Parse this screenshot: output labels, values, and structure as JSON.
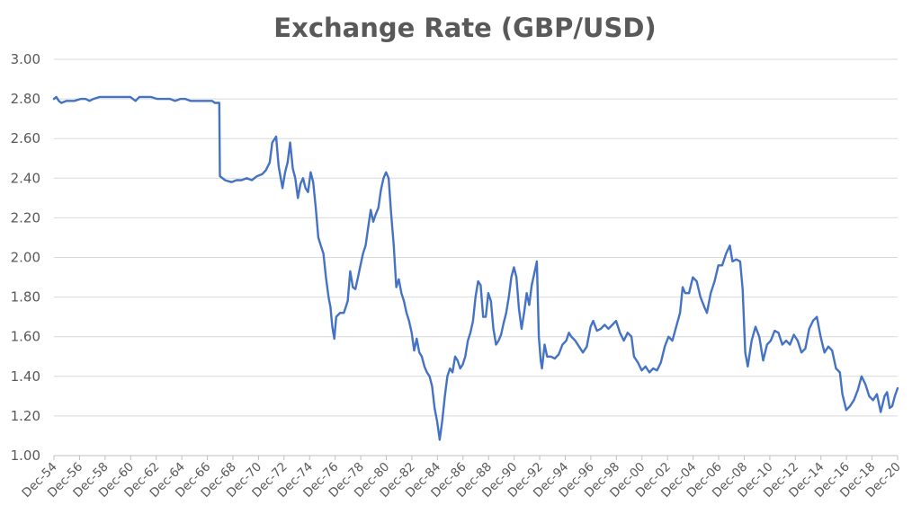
{
  "chart_data": {
    "type": "line",
    "title": "Exchange Rate (GBP/USD)",
    "xlabel": "",
    "ylabel": "",
    "ylim": [
      1.0,
      3.0
    ],
    "yticks": [
      "1.00",
      "1.20",
      "1.40",
      "1.60",
      "1.80",
      "2.00",
      "2.20",
      "2.40",
      "2.60",
      "2.80",
      "3.00"
    ],
    "xlim": [
      1954.92,
      2020.92
    ],
    "xticks": [
      "Dec-54",
      "Dec-56",
      "Dec-58",
      "Dec-60",
      "Dec-62",
      "Dec-64",
      "Dec-66",
      "Dec-68",
      "Dec-70",
      "Dec-72",
      "Dec-74",
      "Dec-76",
      "Dec-78",
      "Dec-80",
      "Dec-82",
      "Dec-84",
      "Dec-86",
      "Dec-88",
      "Dec-90",
      "Dec-92",
      "Dec-94",
      "Dec-96",
      "Dec-98",
      "Dec-00",
      "Dec-02",
      "Dec-04",
      "Dec-06",
      "Dec-08",
      "Dec-10",
      "Dec-12",
      "Dec-14",
      "Dec-16",
      "Dec-18",
      "Dec-20"
    ],
    "grid": true,
    "legend": "none",
    "colors": {
      "line": "#4472c4"
    },
    "series": [
      {
        "values": [
          [
            1954.92,
            2.8
          ],
          [
            1955.1,
            2.81
          ],
          [
            1955.3,
            2.79
          ],
          [
            1955.5,
            2.78
          ],
          [
            1955.9,
            2.79
          ],
          [
            1956.5,
            2.79
          ],
          [
            1957.0,
            2.8
          ],
          [
            1957.4,
            2.8
          ],
          [
            1957.7,
            2.79
          ],
          [
            1958.0,
            2.8
          ],
          [
            1958.5,
            2.81
          ],
          [
            1959.0,
            2.81
          ],
          [
            1959.5,
            2.81
          ],
          [
            1960.0,
            2.81
          ],
          [
            1960.5,
            2.81
          ],
          [
            1960.9,
            2.81
          ],
          [
            1961.3,
            2.79
          ],
          [
            1961.6,
            2.81
          ],
          [
            1962.0,
            2.81
          ],
          [
            1962.5,
            2.81
          ],
          [
            1963.0,
            2.8
          ],
          [
            1963.5,
            2.8
          ],
          [
            1964.0,
            2.8
          ],
          [
            1964.4,
            2.79
          ],
          [
            1964.8,
            2.8
          ],
          [
            1965.2,
            2.8
          ],
          [
            1965.6,
            2.79
          ],
          [
            1966.0,
            2.79
          ],
          [
            1966.5,
            2.79
          ],
          [
            1966.9,
            2.79
          ],
          [
            1967.3,
            2.79
          ],
          [
            1967.5,
            2.78
          ],
          [
            1967.85,
            2.78
          ],
          [
            1967.9,
            2.41
          ],
          [
            1968.3,
            2.39
          ],
          [
            1968.8,
            2.38
          ],
          [
            1969.2,
            2.39
          ],
          [
            1969.6,
            2.39
          ],
          [
            1970.0,
            2.4
          ],
          [
            1970.4,
            2.39
          ],
          [
            1970.8,
            2.41
          ],
          [
            1971.2,
            2.42
          ],
          [
            1971.5,
            2.44
          ],
          [
            1971.8,
            2.48
          ],
          [
            1972.0,
            2.58
          ],
          [
            1972.3,
            2.61
          ],
          [
            1972.5,
            2.46
          ],
          [
            1972.8,
            2.35
          ],
          [
            1973.0,
            2.43
          ],
          [
            1973.2,
            2.48
          ],
          [
            1973.4,
            2.58
          ],
          [
            1973.6,
            2.45
          ],
          [
            1973.8,
            2.4
          ],
          [
            1974.0,
            2.3
          ],
          [
            1974.2,
            2.37
          ],
          [
            1974.4,
            2.4
          ],
          [
            1974.6,
            2.35
          ],
          [
            1974.8,
            2.33
          ],
          [
            1975.0,
            2.43
          ],
          [
            1975.2,
            2.38
          ],
          [
            1975.4,
            2.25
          ],
          [
            1975.6,
            2.1
          ],
          [
            1975.8,
            2.06
          ],
          [
            1976.0,
            2.02
          ],
          [
            1976.2,
            1.9
          ],
          [
            1976.4,
            1.8
          ],
          [
            1976.55,
            1.75
          ],
          [
            1976.7,
            1.65
          ],
          [
            1976.85,
            1.59
          ],
          [
            1977.0,
            1.7
          ],
          [
            1977.3,
            1.72
          ],
          [
            1977.6,
            1.72
          ],
          [
            1977.9,
            1.78
          ],
          [
            1978.1,
            1.93
          ],
          [
            1978.3,
            1.85
          ],
          [
            1978.5,
            1.84
          ],
          [
            1978.7,
            1.9
          ],
          [
            1978.9,
            1.96
          ],
          [
            1979.1,
            2.02
          ],
          [
            1979.3,
            2.06
          ],
          [
            1979.5,
            2.15
          ],
          [
            1979.7,
            2.24
          ],
          [
            1979.9,
            2.18
          ],
          [
            1980.1,
            2.22
          ],
          [
            1980.3,
            2.25
          ],
          [
            1980.5,
            2.34
          ],
          [
            1980.7,
            2.4
          ],
          [
            1980.9,
            2.43
          ],
          [
            1981.1,
            2.4
          ],
          [
            1981.3,
            2.22
          ],
          [
            1981.5,
            2.06
          ],
          [
            1981.7,
            1.85
          ],
          [
            1981.9,
            1.89
          ],
          [
            1982.1,
            1.82
          ],
          [
            1982.3,
            1.78
          ],
          [
            1982.5,
            1.72
          ],
          [
            1982.7,
            1.68
          ],
          [
            1982.9,
            1.62
          ],
          [
            1983.1,
            1.53
          ],
          [
            1983.3,
            1.59
          ],
          [
            1983.5,
            1.52
          ],
          [
            1983.7,
            1.5
          ],
          [
            1983.9,
            1.45
          ],
          [
            1984.1,
            1.42
          ],
          [
            1984.3,
            1.4
          ],
          [
            1984.5,
            1.35
          ],
          [
            1984.7,
            1.24
          ],
          [
            1984.9,
            1.17
          ],
          [
            1985.1,
            1.08
          ],
          [
            1985.3,
            1.18
          ],
          [
            1985.5,
            1.3
          ],
          [
            1985.7,
            1.4
          ],
          [
            1985.9,
            1.44
          ],
          [
            1986.1,
            1.42
          ],
          [
            1986.3,
            1.5
          ],
          [
            1986.5,
            1.48
          ],
          [
            1986.7,
            1.44
          ],
          [
            1986.9,
            1.46
          ],
          [
            1987.1,
            1.5
          ],
          [
            1987.3,
            1.58
          ],
          [
            1987.5,
            1.62
          ],
          [
            1987.7,
            1.68
          ],
          [
            1987.9,
            1.8
          ],
          [
            1988.1,
            1.88
          ],
          [
            1988.3,
            1.86
          ],
          [
            1988.5,
            1.7
          ],
          [
            1988.7,
            1.7
          ],
          [
            1988.9,
            1.82
          ],
          [
            1989.1,
            1.78
          ],
          [
            1989.3,
            1.64
          ],
          [
            1989.5,
            1.56
          ],
          [
            1989.7,
            1.58
          ],
          [
            1989.9,
            1.61
          ],
          [
            1990.1,
            1.67
          ],
          [
            1990.3,
            1.72
          ],
          [
            1990.5,
            1.8
          ],
          [
            1990.7,
            1.9
          ],
          [
            1990.9,
            1.95
          ],
          [
            1991.1,
            1.9
          ],
          [
            1991.3,
            1.74
          ],
          [
            1991.5,
            1.64
          ],
          [
            1991.7,
            1.72
          ],
          [
            1991.9,
            1.82
          ],
          [
            1992.1,
            1.76
          ],
          [
            1992.3,
            1.86
          ],
          [
            1992.5,
            1.92
          ],
          [
            1992.7,
            1.98
          ],
          [
            1992.85,
            1.6
          ],
          [
            1993.0,
            1.48
          ],
          [
            1993.1,
            1.44
          ],
          [
            1993.3,
            1.56
          ],
          [
            1993.5,
            1.5
          ],
          [
            1993.8,
            1.5
          ],
          [
            1994.1,
            1.49
          ],
          [
            1994.4,
            1.51
          ],
          [
            1994.7,
            1.56
          ],
          [
            1995.0,
            1.58
          ],
          [
            1995.2,
            1.62
          ],
          [
            1995.4,
            1.6
          ],
          [
            1995.7,
            1.58
          ],
          [
            1996.0,
            1.55
          ],
          [
            1996.3,
            1.52
          ],
          [
            1996.6,
            1.55
          ],
          [
            1996.9,
            1.65
          ],
          [
            1997.1,
            1.68
          ],
          [
            1997.4,
            1.63
          ],
          [
            1997.7,
            1.64
          ],
          [
            1998.0,
            1.66
          ],
          [
            1998.3,
            1.64
          ],
          [
            1998.6,
            1.66
          ],
          [
            1998.9,
            1.68
          ],
          [
            1999.2,
            1.62
          ],
          [
            1999.5,
            1.58
          ],
          [
            1999.8,
            1.62
          ],
          [
            2000.1,
            1.6
          ],
          [
            2000.3,
            1.5
          ],
          [
            2000.6,
            1.47
          ],
          [
            2000.9,
            1.43
          ],
          [
            2001.2,
            1.45
          ],
          [
            2001.5,
            1.42
          ],
          [
            2001.8,
            1.44
          ],
          [
            2002.1,
            1.43
          ],
          [
            2002.4,
            1.47
          ],
          [
            2002.7,
            1.55
          ],
          [
            2003.0,
            1.6
          ],
          [
            2003.3,
            1.58
          ],
          [
            2003.6,
            1.65
          ],
          [
            2003.9,
            1.72
          ],
          [
            2004.1,
            1.85
          ],
          [
            2004.3,
            1.82
          ],
          [
            2004.6,
            1.82
          ],
          [
            2004.9,
            1.9
          ],
          [
            2005.2,
            1.88
          ],
          [
            2005.5,
            1.8
          ],
          [
            2005.8,
            1.75
          ],
          [
            2006.0,
            1.72
          ],
          [
            2006.3,
            1.82
          ],
          [
            2006.6,
            1.88
          ],
          [
            2006.9,
            1.96
          ],
          [
            2007.2,
            1.96
          ],
          [
            2007.5,
            2.02
          ],
          [
            2007.8,
            2.06
          ],
          [
            2008.0,
            1.98
          ],
          [
            2008.3,
            1.99
          ],
          [
            2008.6,
            1.98
          ],
          [
            2008.8,
            1.84
          ],
          [
            2009.0,
            1.52
          ],
          [
            2009.2,
            1.45
          ],
          [
            2009.5,
            1.58
          ],
          [
            2009.8,
            1.65
          ],
          [
            2010.1,
            1.6
          ],
          [
            2010.4,
            1.48
          ],
          [
            2010.7,
            1.56
          ],
          [
            2011.0,
            1.58
          ],
          [
            2011.3,
            1.63
          ],
          [
            2011.6,
            1.62
          ],
          [
            2011.9,
            1.56
          ],
          [
            2012.2,
            1.58
          ],
          [
            2012.5,
            1.56
          ],
          [
            2012.8,
            1.61
          ],
          [
            2013.1,
            1.58
          ],
          [
            2013.4,
            1.52
          ],
          [
            2013.7,
            1.54
          ],
          [
            2014.0,
            1.64
          ],
          [
            2014.3,
            1.68
          ],
          [
            2014.6,
            1.7
          ],
          [
            2014.9,
            1.6
          ],
          [
            2015.2,
            1.52
          ],
          [
            2015.5,
            1.55
          ],
          [
            2015.8,
            1.53
          ],
          [
            2016.1,
            1.44
          ],
          [
            2016.4,
            1.42
          ],
          [
            2016.6,
            1.31
          ],
          [
            2016.9,
            1.23
          ],
          [
            2017.2,
            1.25
          ],
          [
            2017.5,
            1.28
          ],
          [
            2017.8,
            1.33
          ],
          [
            2018.1,
            1.4
          ],
          [
            2018.4,
            1.36
          ],
          [
            2018.7,
            1.3
          ],
          [
            2019.0,
            1.28
          ],
          [
            2019.3,
            1.31
          ],
          [
            2019.6,
            1.22
          ],
          [
            2019.9,
            1.3
          ],
          [
            2020.1,
            1.32
          ],
          [
            2020.3,
            1.24
          ],
          [
            2020.5,
            1.25
          ],
          [
            2020.7,
            1.3
          ],
          [
            2020.92,
            1.34
          ]
        ]
      }
    ]
  }
}
